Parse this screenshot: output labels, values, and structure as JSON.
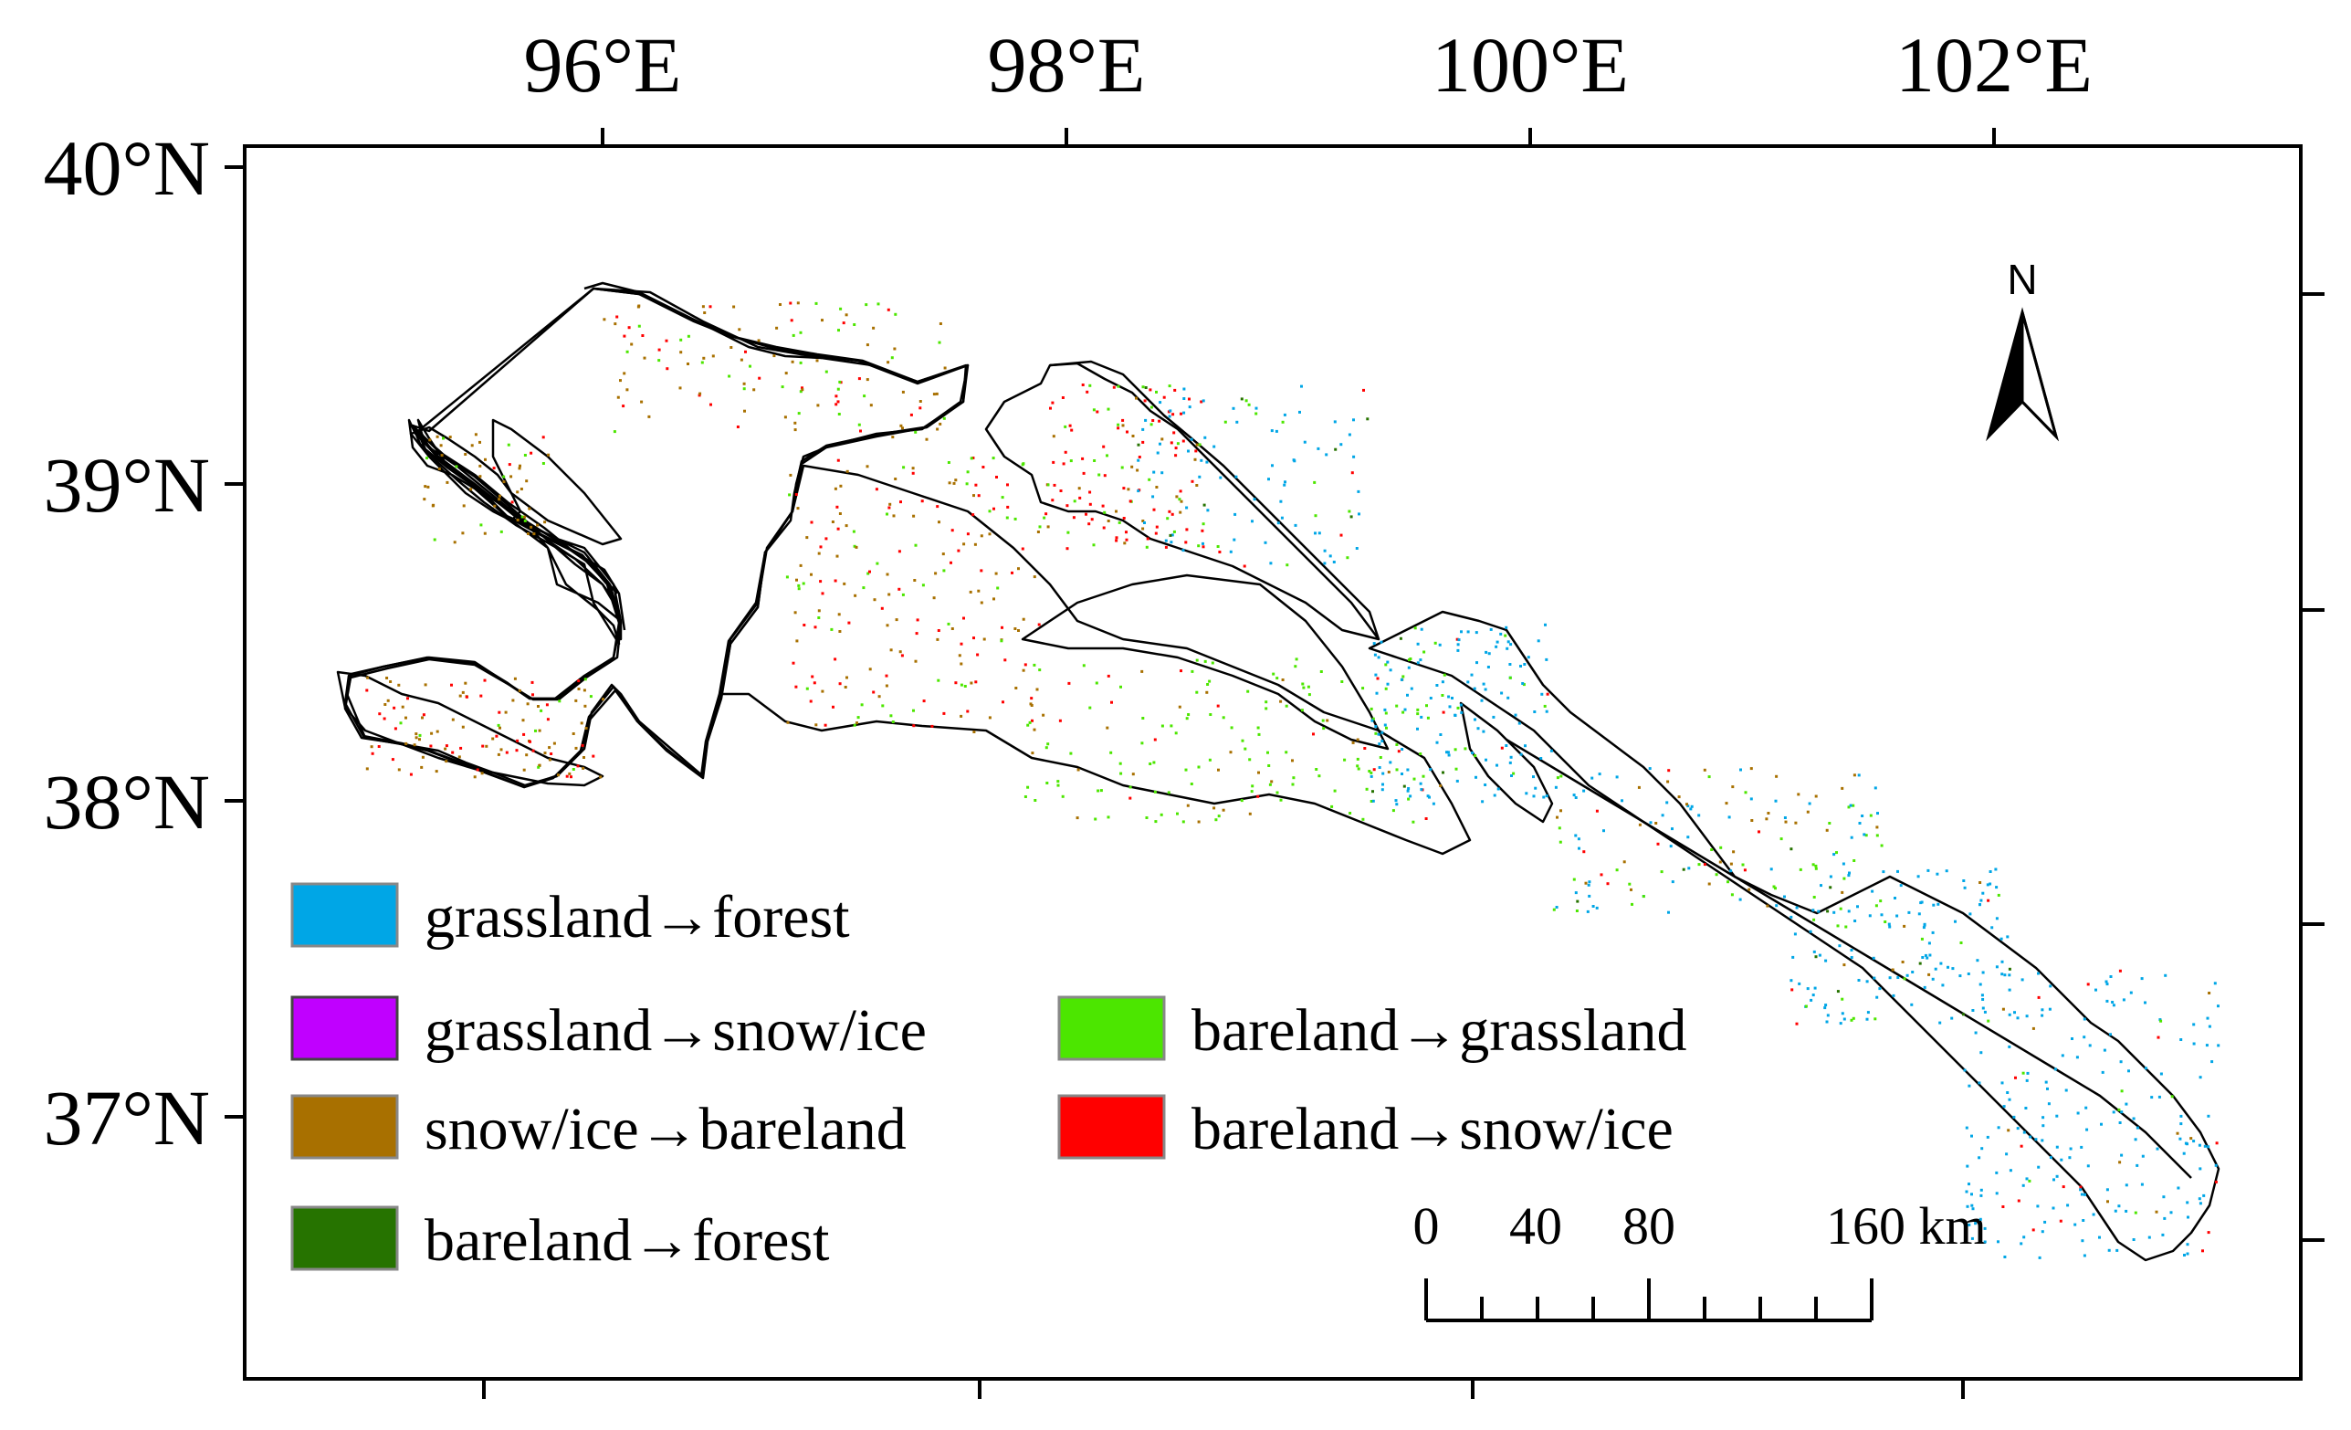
{
  "map": {
    "lon_labels": [
      "96°E",
      "98°E",
      "100°E",
      "102°E"
    ],
    "lat_labels": [
      "40°N",
      "39°N",
      "38°N",
      "37°N"
    ],
    "north_arrow_label": "N",
    "scale_bar": {
      "labels": [
        "0",
        "40",
        "80",
        "160 km"
      ],
      "unit": "km",
      "max_value": 160
    },
    "legend": [
      {
        "label": "grassland→forest",
        "color": "#00a6e6"
      },
      {
        "label": "grassland→snow/ice",
        "color": "#c000ff"
      },
      {
        "label": "snow/ice→bareland",
        "color": "#a87000"
      },
      {
        "label": "bareland→forest",
        "color": "#267300"
      },
      {
        "label": "bareland→grassland",
        "color": "#4ce600"
      },
      {
        "label": "bareland→snow/ice",
        "color": "#ff0000"
      }
    ],
    "region_outline_color": "#000000"
  }
}
